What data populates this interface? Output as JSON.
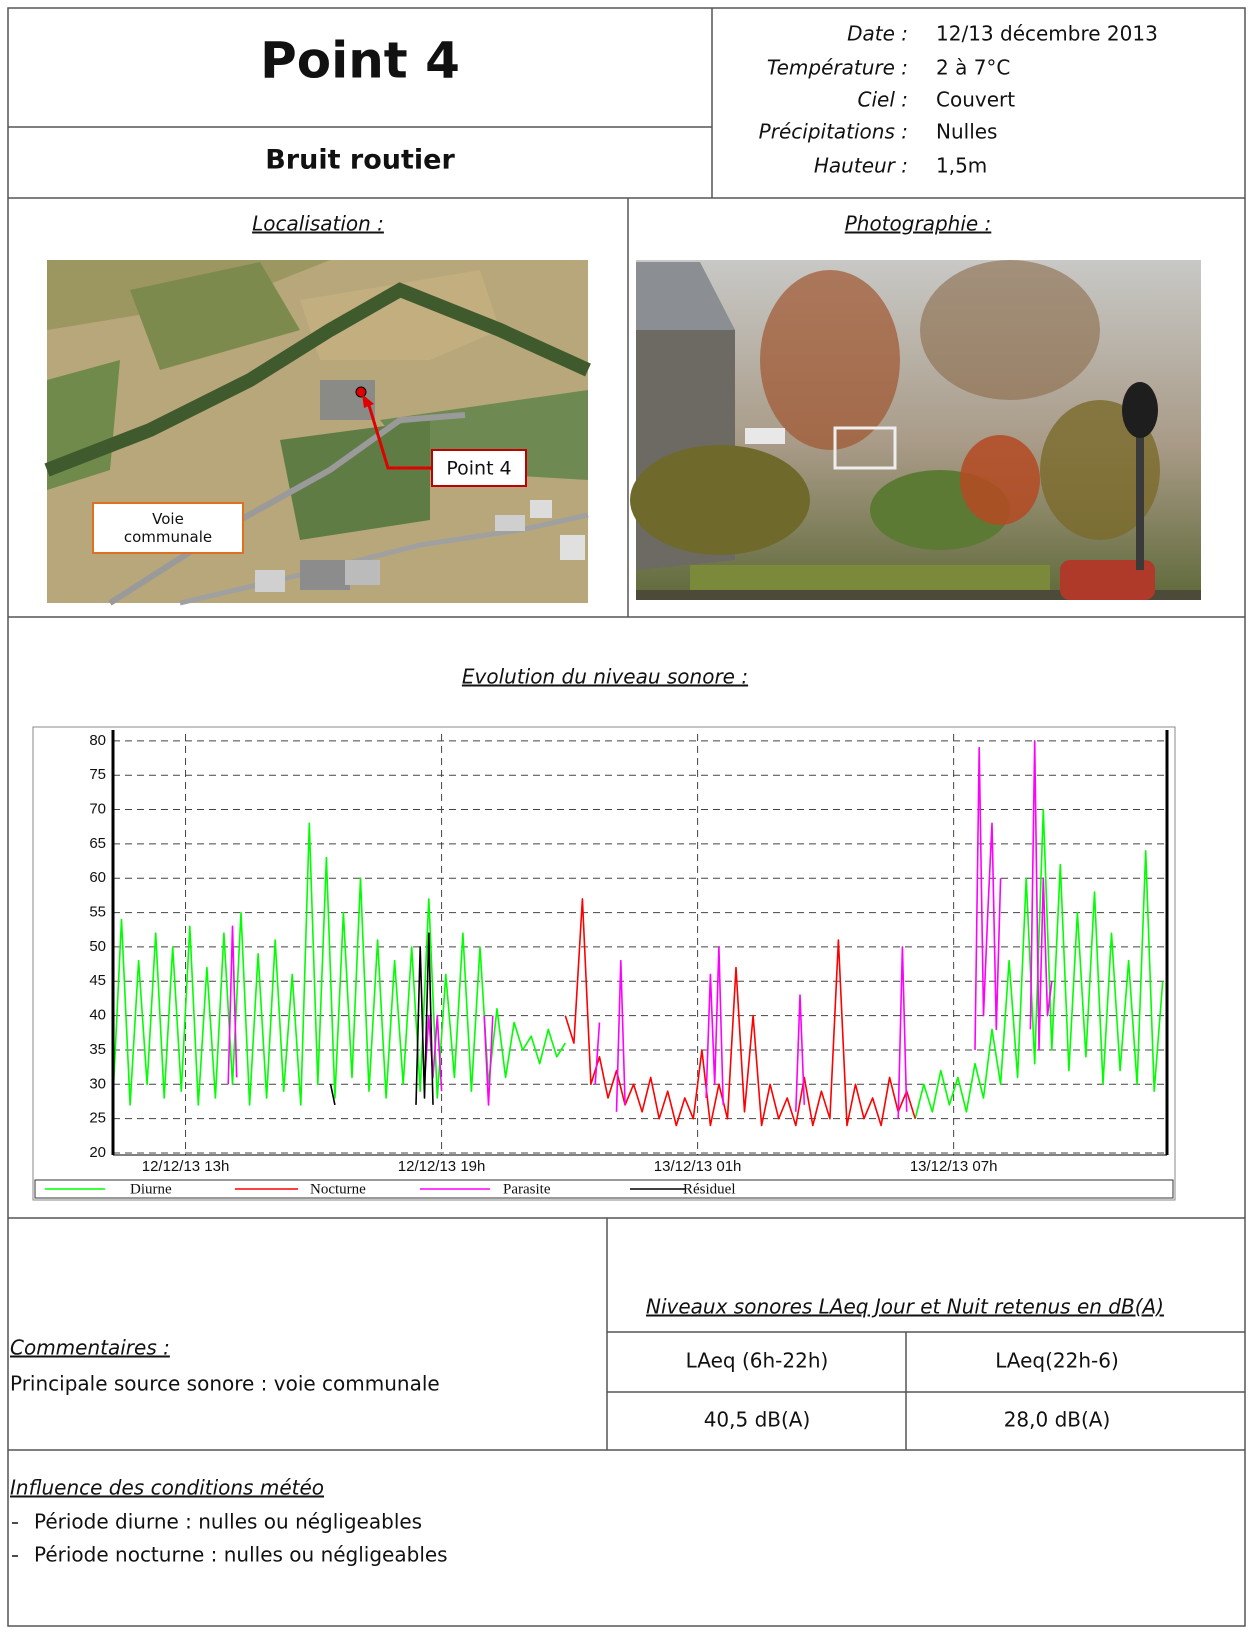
{
  "header": {
    "title": "Point 4",
    "subtitle": "Bruit routier"
  },
  "conditions": [
    {
      "label": "Date :",
      "value": "12/13 décembre 2013"
    },
    {
      "label": "Température :",
      "value": "2 à 7°C"
    },
    {
      "label": "Ciel :",
      "value": "Couvert"
    },
    {
      "label": "Précipitations :",
      "value": "Nulles"
    },
    {
      "label": "Hauteur :",
      "value": "1,5m"
    }
  ],
  "location": {
    "heading": "Localisation :",
    "point_label": "Point 4",
    "road_label": "Voie communale"
  },
  "photo": {
    "heading": "Photographie :"
  },
  "chart_section": {
    "heading": "Evolution du niveau sonore :"
  },
  "chart_data": {
    "type": "line",
    "xlim": [
      11.3,
      36.0
    ],
    "xticks": [
      {
        "value": 13,
        "label": "12/12/13 13h"
      },
      {
        "value": 19,
        "label": "12/12/13 19h"
      },
      {
        "value": 25,
        "label": "13/12/13 01h"
      },
      {
        "value": 31,
        "label": "13/12/13 07h"
      }
    ],
    "ylim": [
      20,
      81
    ],
    "yticks": [
      20,
      25,
      30,
      35,
      40,
      45,
      50,
      55,
      60,
      65,
      70,
      75,
      80
    ],
    "grid": true,
    "series": [
      {
        "name": "Diurne",
        "color": "#00ff00",
        "x": [
          11.3,
          11.5,
          11.7,
          11.9,
          12.1,
          12.3,
          12.5,
          12.7,
          12.9,
          13.1,
          13.3,
          13.5,
          13.7,
          13.9,
          14.1,
          14.3,
          14.5,
          14.7,
          14.9,
          15.1,
          15.3,
          15.5,
          15.7,
          15.9,
          16.1,
          16.3,
          16.5,
          16.7,
          16.9,
          17.1,
          17.3,
          17.5,
          17.7,
          17.9,
          18.1,
          18.3,
          18.5,
          18.7,
          18.9,
          19.1,
          19.3,
          19.5,
          19.7,
          19.9,
          20.1,
          20.3,
          20.5,
          20.7,
          20.9,
          21.1,
          21.3,
          21.5,
          21.7,
          21.9,
          26.0,
          30.1,
          30.3,
          30.5,
          30.7,
          30.9,
          31.1,
          31.3,
          31.5,
          31.7,
          31.9,
          32.1,
          32.3,
          32.5,
          32.7,
          32.9,
          33.1,
          33.3,
          33.5,
          33.7,
          33.9,
          34.1,
          34.3,
          34.5,
          34.7,
          34.9,
          35.1,
          35.3,
          35.5,
          35.7,
          35.9
        ],
        "values": [
          28,
          54,
          27,
          48,
          30,
          52,
          28,
          50,
          29,
          53,
          27,
          47,
          28,
          52,
          30,
          55,
          27,
          49,
          28,
          51,
          29,
          46,
          27,
          68,
          30,
          63,
          28,
          55,
          31,
          60,
          29,
          51,
          28,
          48,
          30,
          50,
          29,
          57,
          28,
          46,
          31,
          52,
          29,
          50,
          30,
          41,
          31,
          39,
          35,
          37,
          33,
          38,
          34,
          36,
          null,
          25,
          30,
          26,
          32,
          27,
          31,
          26,
          33,
          28,
          38,
          30,
          48,
          31,
          60,
          33,
          70,
          35,
          62,
          32,
          55,
          34,
          58,
          30,
          52,
          32,
          48,
          30,
          64,
          29,
          45
        ]
      },
      {
        "name": "Nocturne",
        "color": "#ff0000",
        "x": [
          21.9,
          22.1,
          22.3,
          22.5,
          22.7,
          22.9,
          23.1,
          23.3,
          23.5,
          23.7,
          23.9,
          24.1,
          24.3,
          24.5,
          24.7,
          24.9,
          25.1,
          25.3,
          25.5,
          25.7,
          25.9,
          26.1,
          26.3,
          26.5,
          26.7,
          26.9,
          27.1,
          27.3,
          27.5,
          27.7,
          27.9,
          28.1,
          28.3,
          28.5,
          28.7,
          28.9,
          29.1,
          29.3,
          29.5,
          29.7,
          29.9,
          30.1
        ],
        "values": [
          40,
          36,
          57,
          30,
          34,
          28,
          32,
          27,
          30,
          26,
          31,
          25,
          29,
          24,
          28,
          25,
          35,
          24,
          30,
          25,
          47,
          26,
          40,
          24,
          30,
          25,
          28,
          24,
          31,
          24,
          29,
          25,
          51,
          24,
          30,
          25,
          28,
          24,
          31,
          26,
          29,
          25
        ]
      },
      {
        "name": "Parasite",
        "color": "#ff00ff",
        "x": [
          14.0,
          14.1,
          14.2,
          14.3,
          18.6,
          18.7,
          18.8,
          18.9,
          19.0,
          19.1,
          20.0,
          20.1,
          20.2,
          20.3,
          22.6,
          22.7,
          22.8,
          23.1,
          23.2,
          23.3,
          23.4,
          25.2,
          25.3,
          25.4,
          25.5,
          25.6,
          25.7,
          27.3,
          27.4,
          27.5,
          27.6,
          29.7,
          29.8,
          29.9,
          30.0,
          31.5,
          31.6,
          31.7,
          31.8,
          31.9,
          32.0,
          32.1,
          32.2,
          32.8,
          32.9,
          33.0,
          33.1,
          33.2,
          33.3
        ],
        "values": [
          30,
          53,
          31,
          null,
          30,
          40,
          31,
          40,
          29,
          null,
          40,
          27,
          40,
          null,
          30,
          39,
          null,
          26,
          48,
          27,
          null,
          28,
          46,
          30,
          50,
          27,
          null,
          26,
          43,
          27,
          null,
          25,
          50,
          26,
          null,
          35,
          79,
          40,
          55,
          68,
          38,
          60,
          null,
          38,
          80,
          35,
          60,
          40,
          45
        ]
      },
      {
        "name": "Résiduel",
        "color": "#000000",
        "x": [
          16.4,
          16.5,
          16.6,
          18.4,
          18.5,
          18.6,
          18.7,
          18.8
        ],
        "values": [
          30,
          27,
          null,
          27,
          50,
          28,
          52,
          27
        ]
      }
    ]
  },
  "comments": {
    "heading": "Commentaires :",
    "text": "Principale source sonore : voie communale"
  },
  "levels": {
    "title": "Niveaux sonores LAeq Jour et Nuit retenus en dB(A)",
    "headers": [
      "LAeq (6h-22h)",
      "LAeq(22h-6)"
    ],
    "values": [
      "40,5 dB(A)",
      "28,0 dB(A)"
    ]
  },
  "meteo": {
    "heading": "Influence des conditions météo",
    "items": [
      "Période diurne : nulles ou négligeables",
      "Période nocturne : nulles ou négligeables"
    ]
  }
}
